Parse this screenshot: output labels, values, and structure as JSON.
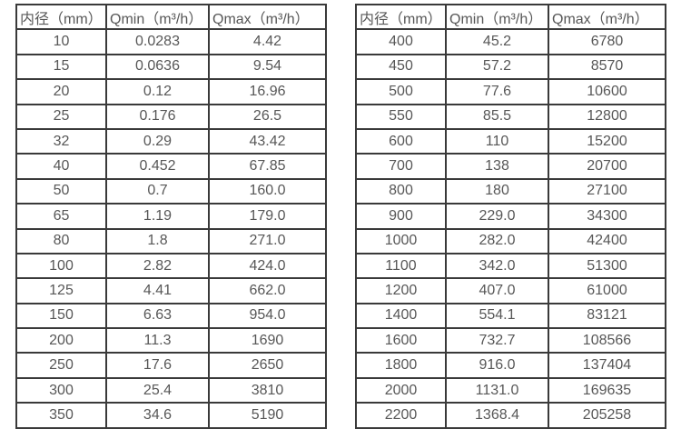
{
  "page": {
    "background_color": "#ffffff",
    "text_color": "#575757",
    "border_color": "#3a3a3a"
  },
  "tables": [
    {
      "name": "flow-range-table-small-diameters",
      "headers": [
        "内径（mm）",
        "Qmin（m³/h）",
        "Qmax（m³/h）"
      ],
      "rows": [
        [
          "10",
          "0.0283",
          "4.42"
        ],
        [
          "15",
          "0.0636",
          "9.54"
        ],
        [
          "20",
          "0.12",
          "16.96"
        ],
        [
          "25",
          "0.176",
          "26.5"
        ],
        [
          "32",
          "0.29",
          "43.42"
        ],
        [
          "40",
          "0.452",
          "67.85"
        ],
        [
          "50",
          "0.7",
          "160.0"
        ],
        [
          "65",
          "1.19",
          "179.0"
        ],
        [
          "80",
          "1.8",
          "271.0"
        ],
        [
          "100",
          "2.82",
          "424.0"
        ],
        [
          "125",
          "4.41",
          "662.0"
        ],
        [
          "150",
          "6.63",
          "954.0"
        ],
        [
          "200",
          "11.3",
          "1690"
        ],
        [
          "250",
          "17.6",
          "2650"
        ],
        [
          "300",
          "25.4",
          "3810"
        ],
        [
          "350",
          "34.6",
          "5190"
        ]
      ]
    },
    {
      "name": "flow-range-table-large-diameters",
      "headers": [
        "内径（mm）",
        "Qmin（m³/h）",
        "Qmax（m³/h）"
      ],
      "rows": [
        [
          "400",
          "45.2",
          "6780"
        ],
        [
          "450",
          "57.2",
          "8570"
        ],
        [
          "500",
          "77.6",
          "10600"
        ],
        [
          "550",
          "85.5",
          "12800"
        ],
        [
          "600",
          "110",
          "15200"
        ],
        [
          "700",
          "138",
          "20700"
        ],
        [
          "800",
          "180",
          "27100"
        ],
        [
          "900",
          "229.0",
          "34300"
        ],
        [
          "1000",
          "282.0",
          "42400"
        ],
        [
          "1100",
          "342.0",
          "51300"
        ],
        [
          "1200",
          "407.0",
          "61000"
        ],
        [
          "1400",
          "554.1",
          "83121"
        ],
        [
          "1600",
          "732.7",
          "108566"
        ],
        [
          "1800",
          "916.0",
          "137404"
        ],
        [
          "2000",
          "1131.0",
          "169635"
        ],
        [
          "2200",
          "1368.4",
          "205258"
        ]
      ]
    }
  ],
  "chart_data": {
    "type": "table",
    "title": "",
    "columns": [
      "内径（mm）",
      "Qmin（m³/h）",
      "Qmax（m³/h）"
    ],
    "note": "two side-by-side tables of water meter flow ranges by inner diameter"
  }
}
